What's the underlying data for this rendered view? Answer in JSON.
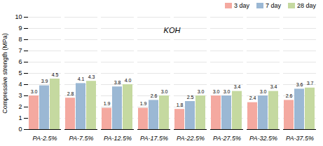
{
  "chart_data": {
    "type": "bar",
    "categories": [
      "PA-2.5%",
      "PA-7.5%",
      "PA-12.5%",
      "PA-17.5%",
      "PA-22.5%",
      "PA-27.5%",
      "PA-32.5%",
      "PA-37.5%"
    ],
    "series": [
      {
        "name": "3 day",
        "color": "#f4a9a0",
        "values": [
          3.0,
          2.8,
          1.9,
          1.9,
          1.8,
          3.0,
          2.4,
          2.6
        ],
        "value_labels": [
          "3.0",
          "2.8",
          "1.9",
          "1.9",
          "1.8",
          "3.0",
          "2.4",
          "2.6"
        ]
      },
      {
        "name": "7 day",
        "color": "#9bb8d4",
        "values": [
          3.9,
          4.1,
          3.8,
          2.6,
          2.5,
          3.0,
          3.0,
          3.6
        ],
        "value_labels": [
          "3.9",
          "4.1",
          "3.8",
          "2.6",
          "2.5",
          "3.0",
          "3.0",
          "3.6"
        ]
      },
      {
        "name": "28 day",
        "color": "#c5d9a0",
        "values": [
          4.5,
          4.3,
          4.0,
          3.0,
          3.0,
          3.4,
          3.4,
          3.7
        ],
        "value_labels": [
          "4.5",
          "4.3",
          "4.0",
          "3.0",
          "3.0",
          "3.4",
          "3.4",
          "3.7"
        ]
      }
    ],
    "ylabel": "Compressive strength (MPa)",
    "annotation": "KOH",
    "ylim": [
      0,
      10
    ],
    "yticks": [
      0,
      1,
      2,
      3,
      4,
      5,
      6,
      7,
      8,
      9,
      10
    ],
    "grid": true,
    "legend": "upper right",
    "data_labels": true
  }
}
